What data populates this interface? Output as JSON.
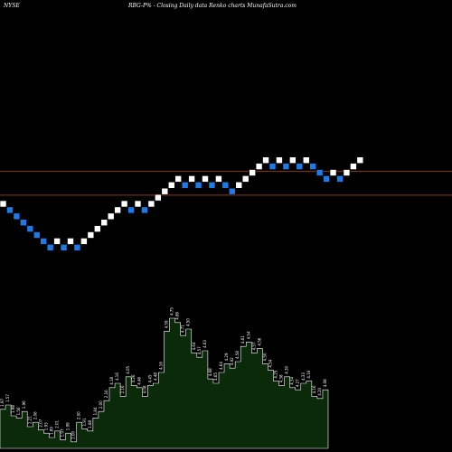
{
  "header": {
    "exchange": "NYSE",
    "caption": "RBG-P% - Closing Daily data Renko charts MunafaSutra.com"
  },
  "colors": {
    "background": "#000000",
    "up_brick": "#ffffff",
    "down_brick": "#1e7ae6",
    "brick_border": "#000000",
    "reference_line": "#8a3a1c",
    "volume_fill": "#0a2a0a",
    "volume_stroke": "#ffffff",
    "volume_label": "#ffffff"
  },
  "chart_data": [
    {
      "type": "renko",
      "title": "",
      "bricks": [
        {
          "dir": "up",
          "level": 10
        },
        {
          "dir": "down",
          "level": 9
        },
        {
          "dir": "down",
          "level": 8
        },
        {
          "dir": "down",
          "level": 7
        },
        {
          "dir": "down",
          "level": 6
        },
        {
          "dir": "down",
          "level": 5
        },
        {
          "dir": "down",
          "level": 4
        },
        {
          "dir": "down",
          "level": 3
        },
        {
          "dir": "up",
          "level": 4
        },
        {
          "dir": "down",
          "level": 3
        },
        {
          "dir": "up",
          "level": 4
        },
        {
          "dir": "down",
          "level": 3
        },
        {
          "dir": "up",
          "level": 4
        },
        {
          "dir": "up",
          "level": 5
        },
        {
          "dir": "up",
          "level": 6
        },
        {
          "dir": "up",
          "level": 7
        },
        {
          "dir": "up",
          "level": 8
        },
        {
          "dir": "up",
          "level": 9
        },
        {
          "dir": "up",
          "level": 10
        },
        {
          "dir": "down",
          "level": 9
        },
        {
          "dir": "up",
          "level": 10
        },
        {
          "dir": "down",
          "level": 9
        },
        {
          "dir": "up",
          "level": 10
        },
        {
          "dir": "up",
          "level": 11
        },
        {
          "dir": "up",
          "level": 12
        },
        {
          "dir": "up",
          "level": 13
        },
        {
          "dir": "up",
          "level": 14
        },
        {
          "dir": "down",
          "level": 13
        },
        {
          "dir": "up",
          "level": 14
        },
        {
          "dir": "down",
          "level": 13
        },
        {
          "dir": "up",
          "level": 14
        },
        {
          "dir": "down",
          "level": 13
        },
        {
          "dir": "up",
          "level": 14
        },
        {
          "dir": "down",
          "level": 13
        },
        {
          "dir": "down",
          "level": 12
        },
        {
          "dir": "up",
          "level": 13
        },
        {
          "dir": "up",
          "level": 14
        },
        {
          "dir": "up",
          "level": 15
        },
        {
          "dir": "up",
          "level": 16
        },
        {
          "dir": "up",
          "level": 17
        },
        {
          "dir": "down",
          "level": 16
        },
        {
          "dir": "up",
          "level": 17
        },
        {
          "dir": "down",
          "level": 16
        },
        {
          "dir": "up",
          "level": 17
        },
        {
          "dir": "down",
          "level": 16
        },
        {
          "dir": "up",
          "level": 17
        },
        {
          "dir": "down",
          "level": 16
        },
        {
          "dir": "down",
          "level": 15
        },
        {
          "dir": "down",
          "level": 14
        },
        {
          "dir": "up",
          "level": 15
        },
        {
          "dir": "down",
          "level": 14
        },
        {
          "dir": "up",
          "level": 15
        },
        {
          "dir": "up",
          "level": 16
        },
        {
          "dir": "up",
          "level": 17
        }
      ],
      "reference_lines": [
        15.2,
        11.4
      ]
    },
    {
      "type": "area",
      "title": "",
      "ylim": [
        0,
        140
      ],
      "values": [
        36,
        40,
        30,
        28,
        34,
        20,
        24,
        17,
        14,
        10,
        16,
        8,
        14,
        6,
        24,
        18,
        16,
        28,
        34,
        44,
        56,
        60,
        48,
        66,
        58,
        56,
        48,
        58,
        60,
        70,
        108,
        120,
        116,
        104,
        110,
        88,
        84,
        90,
        64,
        60,
        70,
        78,
        74,
        80,
        94,
        98,
        88,
        92,
        78,
        72,
        62,
        58,
        66,
        56,
        54,
        60,
        62,
        48,
        46,
        54
      ],
      "labels": [
        "1.97",
        "1.57",
        "1.98",
        "1.56",
        "1.96",
        "2.21",
        "2.06",
        "2.07",
        "1.93",
        "1.89",
        "2.01",
        "1.97",
        "1.99",
        "2.00",
        "2.00",
        "1.91",
        "1.88",
        "1.84",
        "2.00",
        "2.16",
        "4.18",
        "4.16",
        "2.16",
        "4.05",
        "4.26",
        "4.46",
        "4.08",
        "4.45",
        "4.48",
        "4.16",
        "4.59",
        "4.75",
        "4.86",
        "4.71",
        "4.50",
        "4.64",
        "4.57",
        "4.63",
        "4.68",
        "4.65",
        "4.64",
        "4.29",
        "4.92",
        "4.58",
        "4.61",
        "4.54",
        "4.57",
        "4.56",
        "4.50",
        "4.54",
        "4.25",
        "4.38",
        "4.30",
        "4.34",
        "4.27",
        "4.33",
        "4.16",
        "4.16",
        "4.20",
        "4.08"
      ]
    }
  ]
}
